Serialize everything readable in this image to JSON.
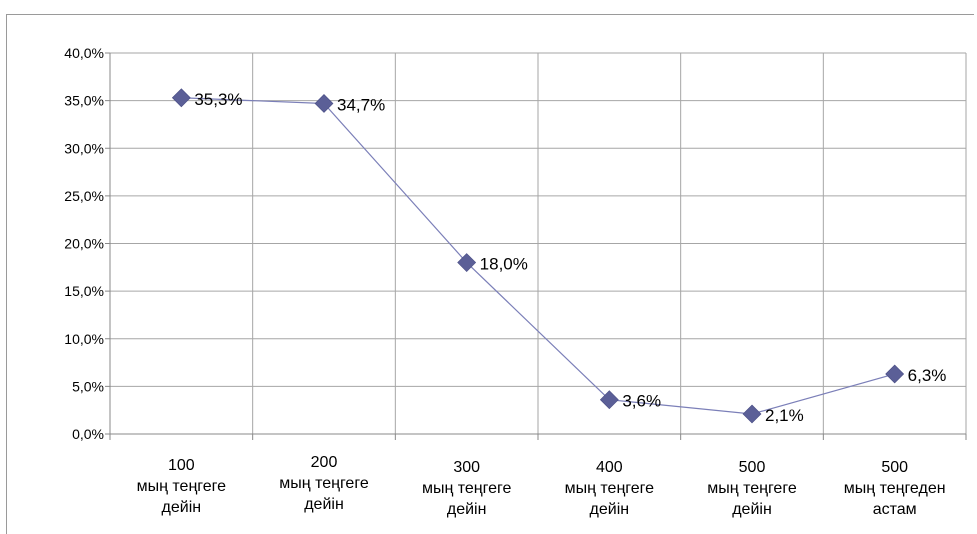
{
  "chart_data": {
    "type": "line",
    "categories": [
      [
        "100",
        "мың теңгеге",
        "дейін"
      ],
      [
        "200",
        "мың теңгеге",
        "дейін"
      ],
      [
        "300",
        "мың теңгеге",
        "дейін"
      ],
      [
        "400",
        "мың теңгеге",
        "дейін"
      ],
      [
        "500",
        "мың теңгеге",
        "дейін"
      ],
      [
        "500",
        "мың теңгеден",
        "астам"
      ]
    ],
    "values": [
      35.3,
      34.7,
      18.0,
      3.6,
      2.1,
      6.3
    ],
    "data_labels": [
      "35,3%",
      "34,7%",
      "18,0%",
      "3,6%",
      "2,1%",
      "6,3%"
    ],
    "y_ticks": [
      "0,0%",
      "5,0%",
      "10,0%",
      "15,0%",
      "20,0%",
      "25,0%",
      "30,0%",
      "35,0%",
      "40,0%"
    ],
    "ylim": [
      0,
      40
    ],
    "grid": true,
    "legend": "none",
    "colors": {
      "line": "#7b7fb8",
      "marker": "#5b5f97",
      "grid": "#a6a6a6",
      "axis": "#888888"
    }
  }
}
